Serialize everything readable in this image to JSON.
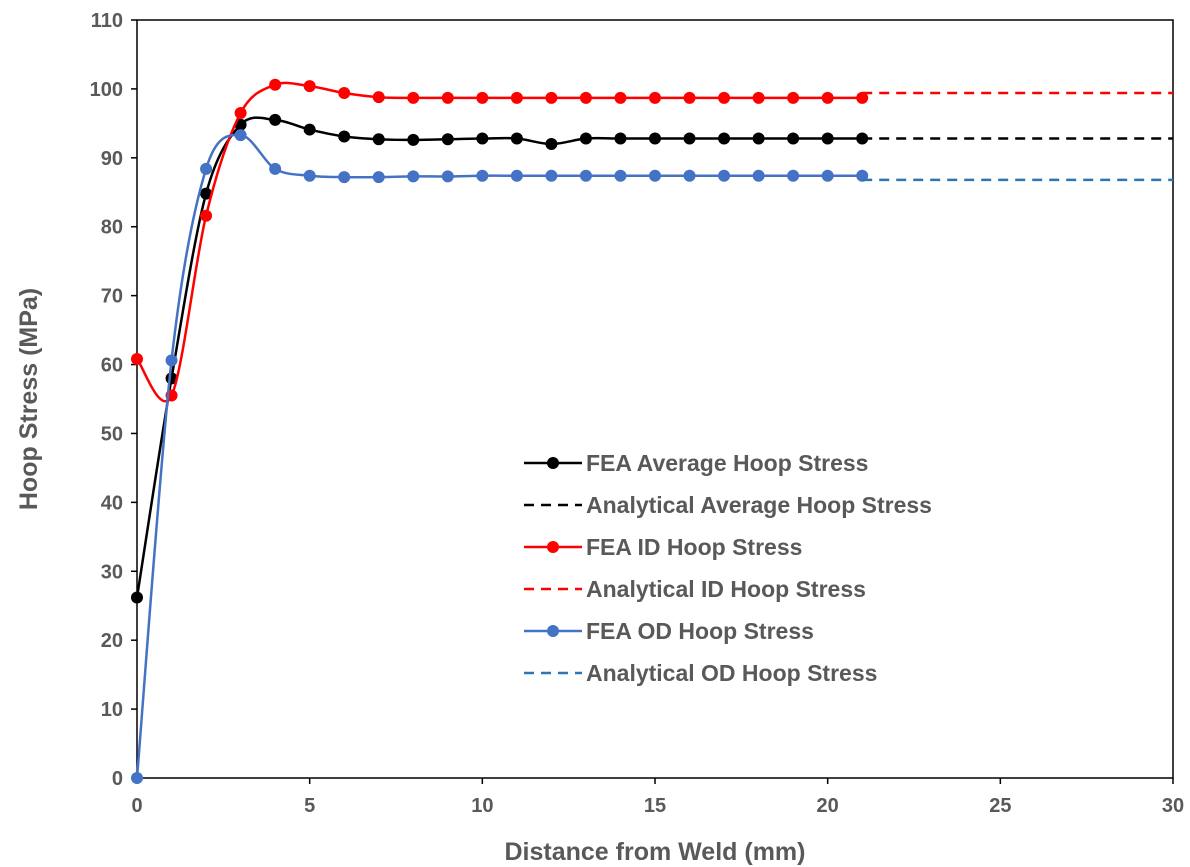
{
  "chart_data": {
    "type": "line",
    "title": "",
    "xlabel": "Distance from Weld (mm)",
    "ylabel": "Hoop Stress (MPa)",
    "xlim": [
      0,
      30
    ],
    "ylim": [
      0,
      110
    ],
    "x_ticks": [
      "0",
      "5",
      "10",
      "15",
      "20",
      "25",
      "30"
    ],
    "y_ticks": [
      "0",
      "10",
      "20",
      "30",
      "40",
      "50",
      "60",
      "70",
      "80",
      "90",
      "100",
      "110"
    ],
    "grid": false,
    "legend_position": "lower-right",
    "series": [
      {
        "name": "FEA Average Hoop Stress",
        "color": "#000000",
        "style": "solid-markers",
        "x": [
          0,
          1,
          2,
          3,
          4,
          5,
          6,
          7,
          8,
          9,
          10,
          11,
          12,
          13,
          14,
          15,
          16,
          17,
          18,
          19,
          20,
          21
        ],
        "y": [
          26.2,
          58.0,
          84.8,
          94.8,
          95.5,
          94.1,
          93.1,
          92.7,
          92.6,
          92.7,
          92.8,
          92.8,
          92.0,
          92.8,
          92.8,
          92.8,
          92.8,
          92.8,
          92.8,
          92.8,
          92.8,
          92.8
        ]
      },
      {
        "name": "Analytical Average Hoop Stress",
        "color": "#000000",
        "style": "dashed",
        "x": [
          21,
          30
        ],
        "y": [
          92.8,
          92.8
        ]
      },
      {
        "name": "FEA ID Hoop Stress",
        "color": "#ff0000",
        "style": "solid-markers",
        "x": [
          0,
          1,
          2,
          3,
          4,
          5,
          6,
          7,
          8,
          9,
          10,
          11,
          12,
          13,
          14,
          15,
          16,
          17,
          18,
          19,
          20,
          21
        ],
        "y": [
          60.8,
          55.5,
          81.6,
          96.5,
          100.6,
          100.4,
          99.4,
          98.8,
          98.7,
          98.7,
          98.7,
          98.7,
          98.7,
          98.7,
          98.7,
          98.7,
          98.7,
          98.7,
          98.7,
          98.7,
          98.7,
          98.7
        ]
      },
      {
        "name": "Analytical ID Hoop Stress",
        "color": "#ff0000",
        "style": "dashed",
        "x": [
          21,
          30
        ],
        "y": [
          99.4,
          99.4
        ]
      },
      {
        "name": "FEA OD Hoop Stress",
        "color": "#4472c4",
        "style": "solid-markers",
        "x": [
          0,
          1,
          2,
          3,
          4,
          5,
          6,
          7,
          8,
          9,
          10,
          11,
          12,
          13,
          14,
          15,
          16,
          17,
          18,
          19,
          20,
          21
        ],
        "y": [
          0,
          60.6,
          88.4,
          93.3,
          88.4,
          87.4,
          87.2,
          87.2,
          87.3,
          87.3,
          87.4,
          87.4,
          87.4,
          87.4,
          87.4,
          87.4,
          87.4,
          87.4,
          87.4,
          87.4,
          87.4,
          87.4
        ]
      },
      {
        "name": "Analytical OD Hoop Stress",
        "color": "#2e75b6",
        "style": "dashed",
        "x": [
          21,
          30
        ],
        "y": [
          86.8,
          86.8
        ]
      }
    ]
  }
}
